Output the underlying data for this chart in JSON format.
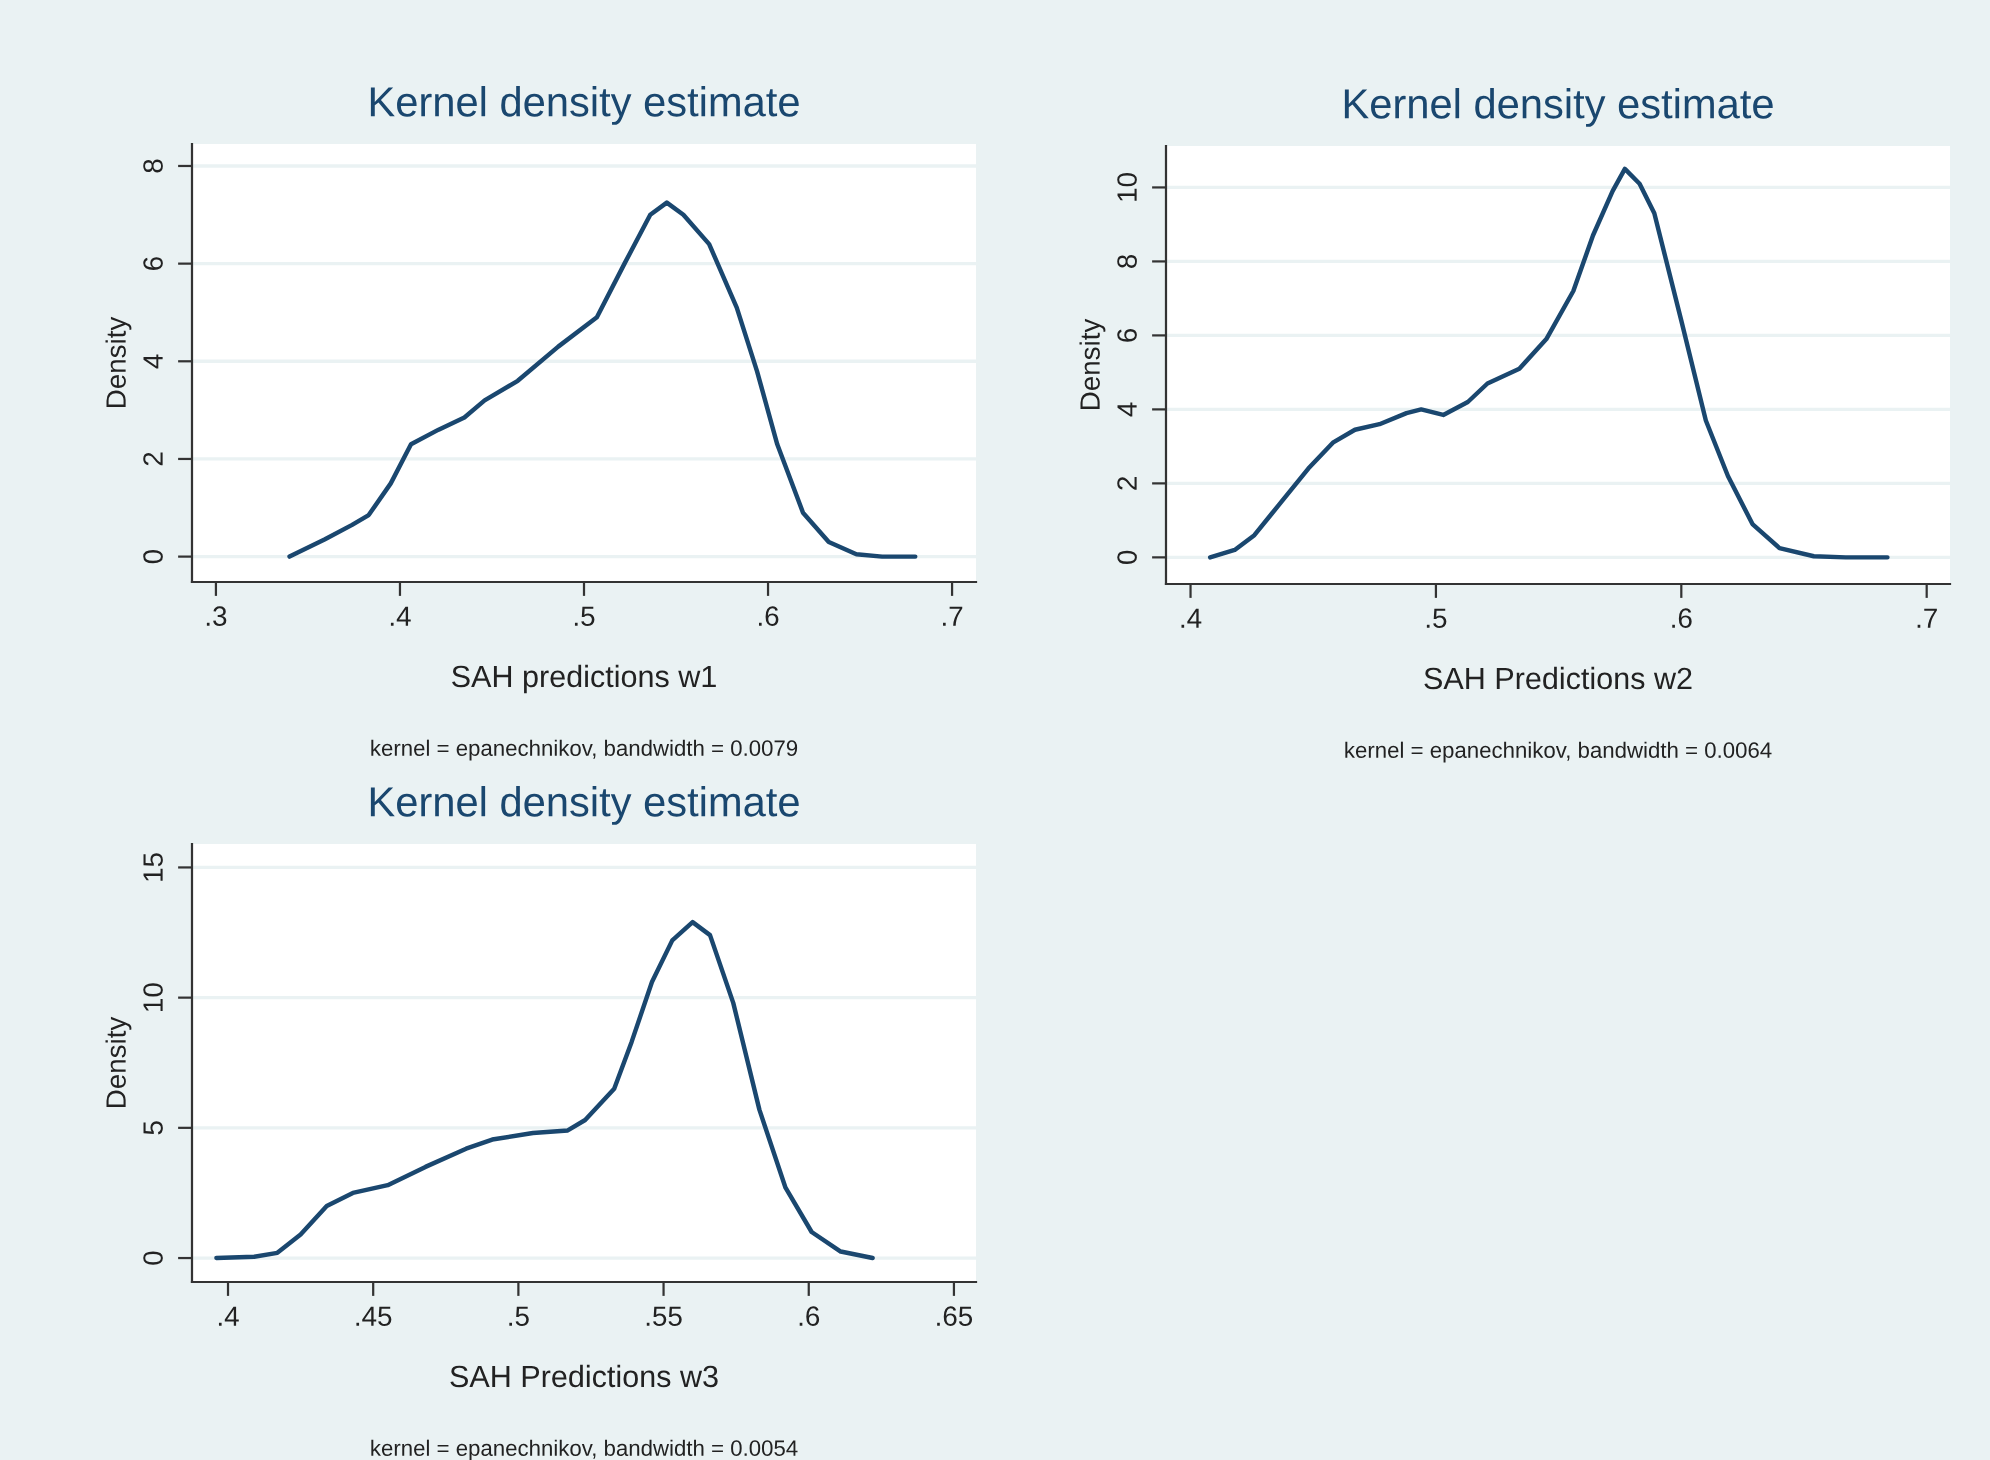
{
  "chart_data": [
    {
      "type": "line",
      "title": "Kernel density estimate",
      "xlabel": "SAH predictions w1",
      "ylabel": "Density",
      "annotations": [
        "kernel = epanechnikov, bandwidth = 0.0079"
      ],
      "grid": "y",
      "legend": false,
      "line_style": "solid",
      "marker": "none",
      "xlim": [
        0.287,
        0.713
      ],
      "ylim": [
        -0.52,
        8.45
      ],
      "xticks": [
        {
          "value": 0.3,
          "label": ".3"
        },
        {
          "value": 0.4,
          "label": ".4"
        },
        {
          "value": 0.5,
          "label": ".5"
        },
        {
          "value": 0.6,
          "label": ".6"
        },
        {
          "value": 0.7,
          "label": ".7"
        }
      ],
      "yticks": [
        0,
        2,
        4,
        6,
        8
      ],
      "series": [
        {
          "color": "#1a476f",
          "x": [
            0.34,
            0.359,
            0.374,
            0.383,
            0.395,
            0.406,
            0.421,
            0.435,
            0.446,
            0.464,
            0.486,
            0.507,
            0.522,
            0.536,
            0.545,
            0.554,
            0.568,
            0.583,
            0.594,
            0.605,
            0.619,
            0.633,
            0.648,
            0.662,
            0.68
          ],
          "values": [
            0,
            0.35,
            0.65,
            0.85,
            1.5,
            2.3,
            2.6,
            2.85,
            3.2,
            3.6,
            4.3,
            4.9,
            6.0,
            7.0,
            7.25,
            7.0,
            6.4,
            5.1,
            3.8,
            2.3,
            0.9,
            0.3,
            0.05,
            0,
            0
          ]
        }
      ]
    },
    {
      "type": "line",
      "title": "Kernel density estimate",
      "xlabel": "SAH Predictions w2",
      "ylabel": "Density",
      "annotations": [
        "kernel = epanechnikov, bandwidth = 0.0064"
      ],
      "grid": "y",
      "legend": false,
      "line_style": "solid",
      "marker": "none",
      "xlim": [
        0.39,
        0.7095
      ],
      "ylim": [
        -0.72,
        11.12
      ],
      "xticks": [
        {
          "value": 0.4,
          "label": ".4"
        },
        {
          "value": 0.5,
          "label": ".5"
        },
        {
          "value": 0.6,
          "label": ".6"
        },
        {
          "value": 0.7,
          "label": ".7"
        }
      ],
      "yticks": [
        0,
        2,
        4,
        6,
        8,
        10
      ],
      "series": [
        {
          "color": "#1a476f",
          "x": [
            0.408,
            0.418,
            0.426,
            0.437,
            0.448,
            0.458,
            0.467,
            0.477,
            0.488,
            0.494,
            0.503,
            0.513,
            0.521,
            0.534,
            0.545,
            0.556,
            0.564,
            0.572,
            0.577,
            0.583,
            0.589,
            0.6,
            0.61,
            0.619,
            0.629,
            0.64,
            0.654,
            0.667,
            0.684
          ],
          "values": [
            0,
            0.2,
            0.6,
            1.5,
            2.4,
            3.1,
            3.45,
            3.6,
            3.9,
            4.0,
            3.85,
            4.2,
            4.7,
            5.1,
            5.9,
            7.2,
            8.7,
            9.9,
            10.5,
            10.1,
            9.3,
            6.4,
            3.7,
            2.2,
            0.9,
            0.25,
            0.03,
            0,
            0
          ]
        }
      ]
    },
    {
      "type": "line",
      "title": "Kernel density estimate",
      "xlabel": "SAH Predictions w3",
      "ylabel": "Density",
      "annotations": [
        "kernel = epanechnikov, bandwidth = 0.0054"
      ],
      "grid": "y",
      "legend": false,
      "line_style": "solid",
      "marker": "none",
      "xlim": [
        0.3876,
        0.6576
      ],
      "ylim": [
        -0.92,
        15.9
      ],
      "xticks": [
        {
          "value": 0.4,
          "label": ".4"
        },
        {
          "value": 0.45,
          "label": ".45"
        },
        {
          "value": 0.5,
          "label": ".5"
        },
        {
          "value": 0.55,
          "label": ".55"
        },
        {
          "value": 0.6,
          "label": ".6"
        },
        {
          "value": 0.65,
          "label": ".65"
        }
      ],
      "yticks": [
        0,
        5,
        10,
        15
      ],
      "series": [
        {
          "color": "#1a476f",
          "x": [
            0.396,
            0.409,
            0.417,
            0.425,
            0.434,
            0.443,
            0.455,
            0.468,
            0.482,
            0.491,
            0.505,
            0.517,
            0.523,
            0.533,
            0.539,
            0.546,
            0.553,
            0.56,
            0.566,
            0.574,
            0.583,
            0.592,
            0.601,
            0.611,
            0.622
          ],
          "values": [
            0,
            0.05,
            0.2,
            0.9,
            2.0,
            2.5,
            2.8,
            3.5,
            4.2,
            4.55,
            4.8,
            4.9,
            5.3,
            6.5,
            8.3,
            10.6,
            12.2,
            12.9,
            12.4,
            9.8,
            5.7,
            2.7,
            1.0,
            0.25,
            0
          ]
        }
      ]
    }
  ]
}
